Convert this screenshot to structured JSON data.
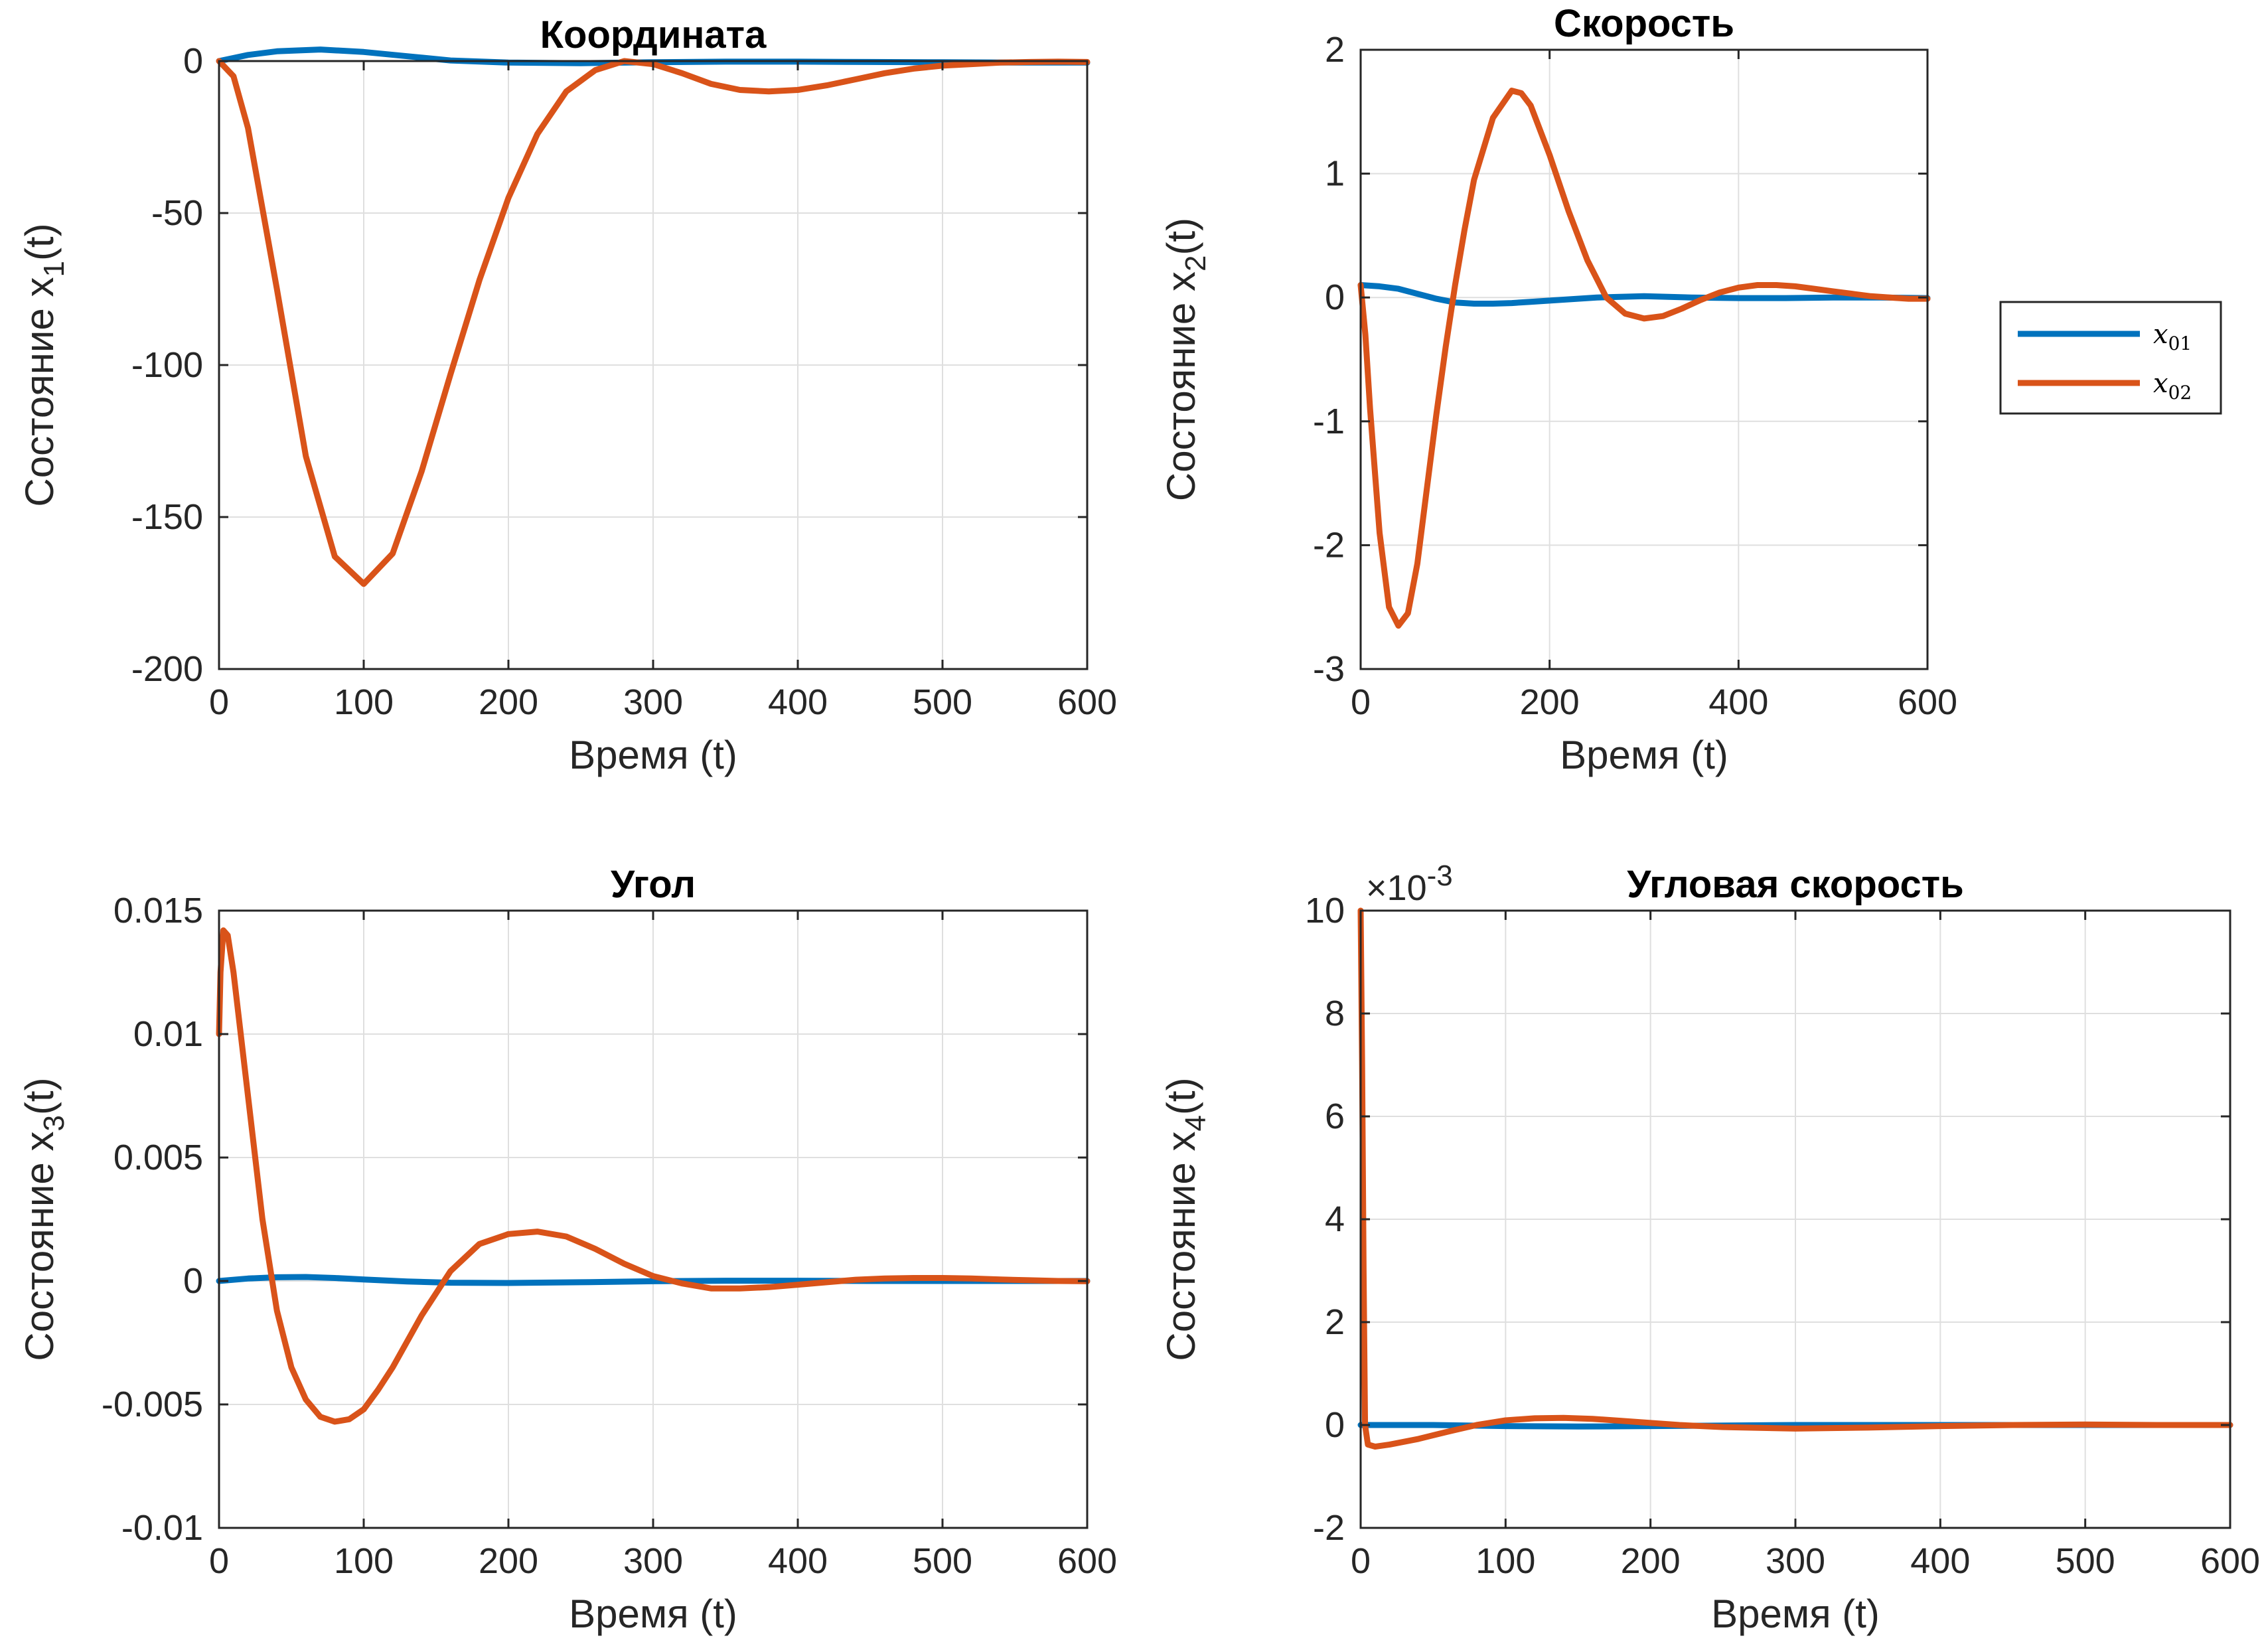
{
  "chart_data": [
    {
      "type": "line",
      "title": "Координата",
      "xlabel": "Время (t)",
      "ylabel": {
        "prefix": "Состояние x",
        "sub": "1",
        "suffix": "(t)"
      },
      "xlim": [
        0,
        600
      ],
      "ylim": [
        -200,
        0
      ],
      "xticks": [
        0,
        100,
        200,
        300,
        400,
        500,
        600
      ],
      "xtick_labels": [
        "0",
        "100",
        "200",
        "300",
        "400",
        "500",
        "600"
      ],
      "yticks": [
        -200,
        -150,
        -100,
        -50,
        0
      ],
      "ytick_labels": [
        "-200",
        "-150",
        "-100",
        "-50",
        "0"
      ],
      "grid": true,
      "series": [
        {
          "name": "x01",
          "color": "#0072BD",
          "x": [
            0,
            20,
            40,
            70,
            100,
            130,
            160,
            200,
            250,
            300,
            350,
            400,
            450,
            500,
            550,
            600
          ],
          "y": [
            0,
            2.0,
            3.2,
            3.8,
            3.0,
            1.6,
            0.2,
            -0.5,
            -0.7,
            -0.4,
            -0.2,
            -0.2,
            -0.3,
            -0.4,
            -0.5,
            -0.5
          ]
        },
        {
          "name": "x02",
          "color": "#D95319",
          "x": [
            0,
            10,
            20,
            40,
            60,
            80,
            100,
            120,
            140,
            160,
            180,
            200,
            220,
            240,
            260,
            280,
            300,
            320,
            340,
            360,
            380,
            400,
            420,
            440,
            460,
            480,
            500,
            520,
            540,
            560,
            580,
            600
          ],
          "y": [
            0,
            -5,
            -22,
            -75,
            -130,
            -163,
            -172,
            -162,
            -135,
            -103,
            -72,
            -45,
            -24,
            -10,
            -3,
            0,
            -1,
            -4,
            -7.5,
            -9.5,
            -10,
            -9.5,
            -8,
            -6,
            -4,
            -2.5,
            -1.5,
            -1,
            -0.5,
            -0.3,
            -0.2,
            -0.3
          ]
        }
      ]
    },
    {
      "type": "line",
      "title": "Скорость",
      "xlabel": "Время (t)",
      "ylabel": {
        "prefix": "Состояние x",
        "sub": "2",
        "suffix": "(t)"
      },
      "xlim": [
        0,
        600
      ],
      "ylim": [
        -3,
        2
      ],
      "xticks": [
        0,
        200,
        400,
        600
      ],
      "xtick_labels": [
        "0",
        "200",
        "400",
        "600"
      ],
      "yticks": [
        -3,
        -2,
        -1,
        0,
        1,
        2
      ],
      "ytick_labels": [
        "-3",
        "-2",
        "-1",
        "0",
        "1",
        "2"
      ],
      "grid": true,
      "series": [
        {
          "name": "x01",
          "color": "#0072BD",
          "x": [
            0,
            20,
            40,
            60,
            80,
            100,
            120,
            140,
            160,
            180,
            200,
            250,
            300,
            350,
            400,
            450,
            500,
            550,
            600
          ],
          "y": [
            0.1,
            0.09,
            0.07,
            0.03,
            -0.01,
            -0.04,
            -0.05,
            -0.05,
            -0.045,
            -0.035,
            -0.025,
            0.0,
            0.01,
            0.0,
            -0.005,
            -0.005,
            0.0,
            0.0,
            -0.005
          ]
        },
        {
          "name": "x02",
          "color": "#D95319",
          "x": [
            0,
            5,
            10,
            20,
            30,
            40,
            50,
            60,
            70,
            80,
            90,
            100,
            110,
            120,
            140,
            160,
            170,
            180,
            200,
            220,
            240,
            260,
            280,
            300,
            320,
            340,
            360,
            380,
            400,
            420,
            440,
            460,
            480,
            500,
            520,
            540,
            560,
            580,
            600
          ],
          "y": [
            0.1,
            -0.3,
            -0.9,
            -1.9,
            -2.5,
            -2.65,
            -2.55,
            -2.15,
            -1.55,
            -0.95,
            -0.4,
            0.1,
            0.55,
            0.95,
            1.45,
            1.67,
            1.65,
            1.55,
            1.15,
            0.7,
            0.3,
            0.0,
            -0.13,
            -0.17,
            -0.15,
            -0.09,
            -0.02,
            0.04,
            0.08,
            0.1,
            0.1,
            0.09,
            0.07,
            0.05,
            0.03,
            0.01,
            0.0,
            -0.01,
            -0.01
          ]
        }
      ]
    },
    {
      "type": "line",
      "title": "Угол",
      "xlabel": "Время (t)",
      "ylabel": {
        "prefix": "Состояние x",
        "sub": "3",
        "suffix": "(t)"
      },
      "xlim": [
        0,
        600
      ],
      "ylim": [
        -0.01,
        0.015
      ],
      "xticks": [
        0,
        100,
        200,
        300,
        400,
        500,
        600
      ],
      "xtick_labels": [
        "0",
        "100",
        "200",
        "300",
        "400",
        "500",
        "600"
      ],
      "yticks": [
        -0.01,
        -0.005,
        0,
        0.005,
        0.01,
        0.015
      ],
      "ytick_labels": [
        "-0.01",
        "-0.005",
        "0",
        "0.005",
        "0.01",
        "0.015"
      ],
      "grid": true,
      "series": [
        {
          "name": "x01",
          "color": "#0072BD",
          "x": [
            0,
            20,
            40,
            60,
            80,
            100,
            130,
            160,
            200,
            250,
            300,
            350,
            400,
            450,
            500,
            550,
            600
          ],
          "y": [
            0.0,
            0.0001,
            0.00015,
            0.00016,
            0.00012,
            6e-05,
            -2e-05,
            -7e-05,
            -8e-05,
            -5e-05,
            -1e-05,
            1e-05,
            1e-05,
            0.0,
            0.0,
            0.0,
            0.0
          ]
        },
        {
          "name": "x02",
          "color": "#D95319",
          "x": [
            0,
            1,
            3,
            6,
            10,
            20,
            30,
            40,
            50,
            60,
            70,
            80,
            90,
            100,
            110,
            120,
            140,
            160,
            180,
            200,
            220,
            240,
            260,
            280,
            300,
            320,
            340,
            360,
            380,
            400,
            420,
            440,
            460,
            480,
            500,
            520,
            540,
            560,
            580,
            600
          ],
          "y": [
            0.01,
            0.0125,
            0.0142,
            0.014,
            0.0125,
            0.0075,
            0.0025,
            -0.0012,
            -0.0035,
            -0.0048,
            -0.0055,
            -0.0057,
            -0.0056,
            -0.0052,
            -0.0044,
            -0.0035,
            -0.0014,
            0.0004,
            0.0015,
            0.0019,
            0.002,
            0.0018,
            0.0013,
            0.0007,
            0.0002,
            -0.0001,
            -0.0003,
            -0.0003,
            -0.00025,
            -0.00015,
            -5e-05,
            5e-05,
            0.0001,
            0.00012,
            0.00012,
            0.0001,
            6e-05,
            3e-05,
            0.0,
            -1e-05
          ]
        }
      ]
    },
    {
      "type": "line",
      "title": "Угловая скорость",
      "exponent_label": "×10",
      "exponent_power": "-3",
      "xlabel": "Время (t)",
      "ylabel": {
        "prefix": "Состояние x",
        "sub": "4",
        "suffix": "(t)"
      },
      "xlim": [
        0,
        600
      ],
      "ylim": [
        -2,
        10
      ],
      "xticks": [
        0,
        100,
        200,
        300,
        400,
        500,
        600
      ],
      "xtick_labels": [
        "0",
        "100",
        "200",
        "300",
        "400",
        "500",
        "600"
      ],
      "yticks": [
        -2,
        0,
        2,
        4,
        6,
        8,
        10
      ],
      "ytick_labels": [
        "-2",
        "0",
        "2",
        "4",
        "6",
        "8",
        "10"
      ],
      "grid": true,
      "series": [
        {
          "name": "x01",
          "color": "#0072BD",
          "x": [
            0,
            50,
            100,
            150,
            200,
            300,
            400,
            500,
            600
          ],
          "y": [
            0.0,
            0.0,
            -0.02,
            -0.03,
            -0.02,
            0.0,
            0.0,
            0.0,
            0.0
          ]
        },
        {
          "name": "x02",
          "color": "#D95319",
          "x": [
            0,
            1,
            2,
            3,
            5,
            10,
            20,
            40,
            60,
            80,
            100,
            120,
            140,
            160,
            180,
            200,
            220,
            250,
            300,
            350,
            400,
            450,
            500,
            550,
            600
          ],
          "y": [
            10.0,
            7.0,
            3.0,
            0.0,
            -0.38,
            -0.42,
            -0.38,
            -0.27,
            -0.13,
            0.0,
            0.09,
            0.13,
            0.14,
            0.12,
            0.08,
            0.04,
            0.0,
            -0.04,
            -0.07,
            -0.05,
            -0.02,
            0.0,
            0.01,
            0.0,
            0.0
          ]
        }
      ]
    }
  ],
  "legend": {
    "items": [
      {
        "base": "x",
        "sub": "01",
        "color": "#0072BD"
      },
      {
        "base": "x",
        "sub": "02",
        "color": "#D95319"
      }
    ]
  }
}
